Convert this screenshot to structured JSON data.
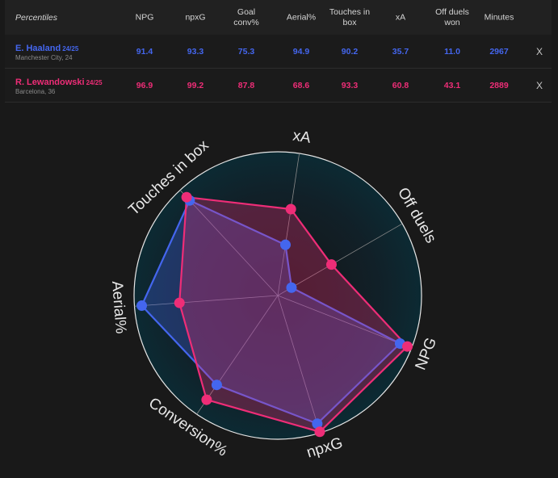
{
  "table": {
    "header_label": "Percentiles",
    "columns": [
      "NPG",
      "npxG",
      "Goal conv%",
      "Aerial%",
      "Touches in box",
      "xA",
      "Off duels won",
      "Minutes"
    ],
    "column_lines": [
      [
        "NPG"
      ],
      [
        "npxG"
      ],
      [
        "Goal",
        "conv%"
      ],
      [
        "Aerial%"
      ],
      [
        "Touches in",
        "box"
      ],
      [
        "xA"
      ],
      [
        "Off duels",
        "won"
      ],
      [
        "Minutes"
      ]
    ],
    "remove_label": "X"
  },
  "players": [
    {
      "name": "E. Haaland",
      "season": "24/25",
      "subtitle": "Manchester City, 24",
      "color": "#4466ee",
      "values": [
        "91.4",
        "93.3",
        "75.3",
        "94.9",
        "90.2",
        "35.7",
        "11.0",
        "2967"
      ]
    },
    {
      "name": "R. Lewandowski",
      "season": "24/25",
      "subtitle": "Barcelona, 36",
      "color": "#ee2d77",
      "values": [
        "96.9",
        "99.2",
        "87.8",
        "68.6",
        "93.3",
        "60.8",
        "43.1",
        "2889"
      ]
    }
  ],
  "chart_data": {
    "type": "radar",
    "axes": [
      "xA",
      "Off duels",
      "NPG",
      "npxG",
      "Conversion%",
      "Aerial%",
      "Touches in box"
    ],
    "range": [
      0,
      100
    ],
    "series": [
      {
        "name": "E. Haaland 24/25",
        "color": "#4466ee",
        "values": [
          35.7,
          11.0,
          91.4,
          93.3,
          75.3,
          94.9,
          90.2
        ]
      },
      {
        "name": "R. Lewandowski 24/25",
        "color": "#ee2d77",
        "values": [
          60.8,
          43.1,
          96.9,
          99.2,
          87.8,
          68.6,
          93.3
        ]
      }
    ]
  }
}
